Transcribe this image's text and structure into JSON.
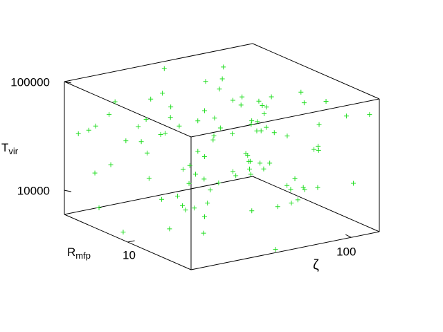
{
  "chart_data": {
    "type": "scatter3d",
    "color": "#22dd22",
    "xlabel": "ζ",
    "ylabel": "R",
    "ylabel_sub": "mfp",
    "zlabel": "T",
    "zlabel_sub": "vir",
    "xlim": [
      10,
      150
    ],
    "ylim": [
      1,
      100
    ],
    "zlim": [
      6000,
      100000
    ],
    "xticks": [
      100
    ],
    "yticks": [
      10
    ],
    "zticks": [
      10000,
      100000
    ],
    "xscale": "log",
    "yscale": "log",
    "zscale": "log",
    "x": [
      12,
      15,
      18,
      22,
      27,
      33,
      40,
      48,
      58,
      70,
      85,
      100,
      120,
      140,
      11,
      13,
      16,
      20,
      25,
      30,
      36,
      44,
      53,
      64,
      78,
      95,
      115,
      135,
      14,
      17,
      21,
      26,
      32,
      39,
      47,
      57,
      69,
      83,
      105,
      125,
      10.5,
      19,
      24,
      29,
      35,
      42,
      51,
      62,
      75,
      90,
      110,
      130,
      148,
      12.5,
      23,
      31,
      45,
      55,
      67,
      80,
      98,
      118,
      138,
      16.5,
      28,
      37,
      50,
      60,
      72,
      88,
      102,
      128,
      11.5,
      21.5,
      34,
      46,
      65,
      76,
      93,
      112,
      145,
      13.5,
      18.5,
      27.5,
      38,
      52,
      63,
      82,
      107,
      132,
      15.5,
      24.5,
      41,
      56,
      71,
      86,
      122,
      142,
      17.5,
      33.5
    ],
    "y": [
      45,
      3,
      70,
      12,
      1.5,
      28,
      88,
      6,
      19,
      2.2,
      35,
      9,
      60,
      1.2,
      15,
      80,
      4,
      25,
      50,
      7,
      2.8,
      65,
      11,
      40,
      1.8,
      95,
      5.5,
      22,
      75,
      8,
      30,
      1.3,
      55,
      14,
      3.5,
      85,
      18,
      2,
      42,
      10,
      68,
      4.5,
      26,
      90,
      1.1,
      16,
      48,
      6.5,
      32,
      2.5,
      13,
      78,
      3.2,
      58,
      21,
      1.6,
      38,
      9.5,
      72,
      5,
      24,
      1.4,
      62,
      7.5,
      92,
      17,
      3.8,
      46,
      11.5,
      84,
      5.8,
      36,
      1.9,
      74,
      13.5,
      29,
      2.6,
      52,
      20,
      98,
      8.5,
      42,
      3,
      66,
      1.25,
      23,
      82,
      4.2,
      34,
      12.5,
      56,
      2.1,
      19.5,
      7,
      87,
      1.7,
      27,
      44,
      9,
      64
    ],
    "z": [
      8000,
      25000,
      60000,
      12000,
      40000,
      7000,
      90000,
      18000,
      30000,
      15000,
      50000,
      9500,
      22000,
      70000,
      6500,
      35000,
      13000,
      80000,
      20000,
      45000,
      11000,
      28000,
      65000,
      8500,
      16000,
      55000,
      24000,
      7500,
      38000,
      95000,
      14000,
      42000,
      6800,
      32000,
      75000,
      10500,
      19000,
      58000,
      27000,
      9000,
      36000,
      12500,
      85000,
      21000,
      6200,
      48000,
      17000,
      68000,
      10000,
      31000,
      26000,
      7800,
      52000,
      15500,
      39000,
      72000,
      11500,
      23000,
      62000,
      8800,
      44000,
      16500,
      9200,
      78000,
      29000,
      13500,
      54000,
      7200,
      34000,
      20500,
      66000,
      10800,
      41000,
      24500,
      6600,
      47000,
      18500,
      88000,
      12200,
      33000,
      21500,
      57000,
      8200,
      37000,
      14500,
      76000,
      26500,
      9800,
      43000,
      63000,
      17500,
      30500,
      7600,
      50500,
      11800,
      98000,
      22500,
      40500,
      6900,
      25500
    ]
  }
}
